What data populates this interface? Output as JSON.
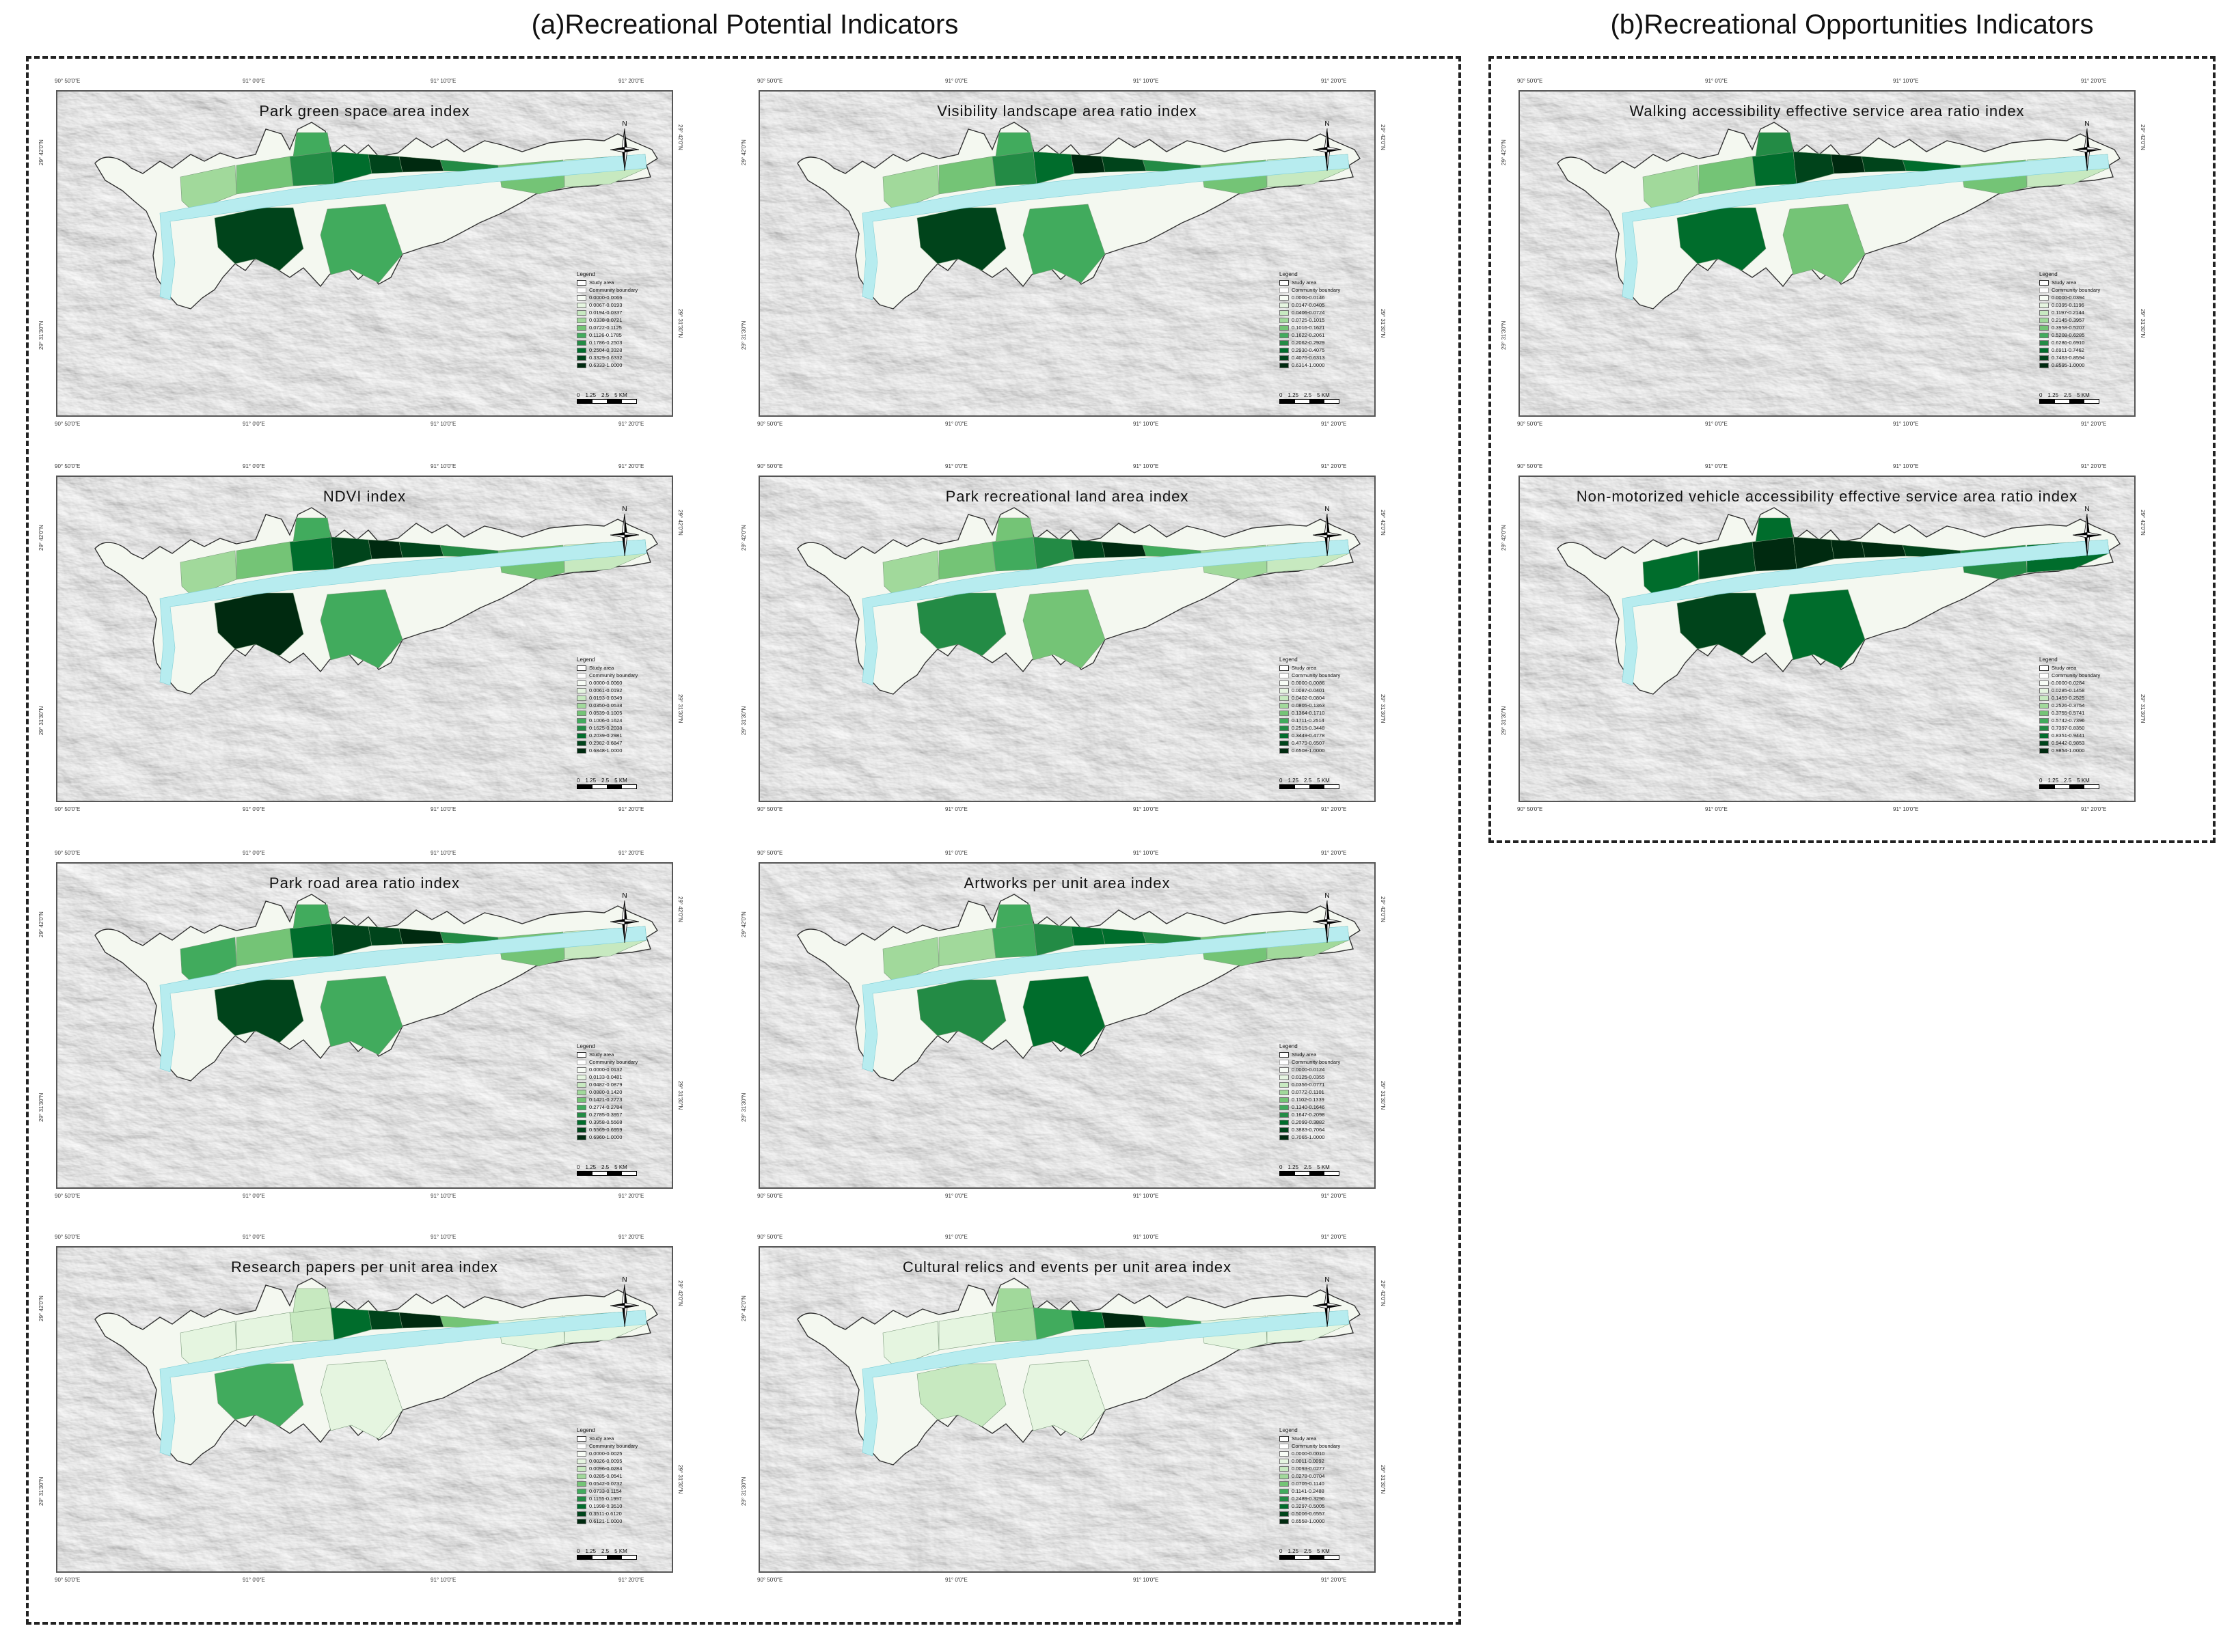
{
  "groups": [
    {
      "title": "(a)Recreational Potential Indicators"
    },
    {
      "title": "(b)Recreational Opportunities Indicators"
    }
  ],
  "coordinates": {
    "top": [
      "90° 50′0″E",
      "91° 0′0″E",
      "91° 10′0″E",
      "91° 20′0″E"
    ],
    "bottom": [
      "90° 50′0″E",
      "91° 0′0″E",
      "91° 10′0″E",
      "91° 20′0″E"
    ],
    "left": [
      "29° 42′0″N",
      "29° 31′30″N"
    ],
    "right": [
      "29° 42′0″N",
      "29° 31′30″N"
    ]
  },
  "north_label": "N",
  "legend_common": {
    "title": "Legend",
    "study_area": "Study area",
    "community_boundary": "Community boundary"
  },
  "scale": {
    "labels": [
      "0",
      "1.25",
      "2.5",
      "5 KM"
    ]
  },
  "colors": {
    "ramp": [
      "#f7fcf5",
      "#e5f5e0",
      "#c7e9c0",
      "#a1d99b",
      "#74c476",
      "#41ab5d",
      "#238b45",
      "#006d2c",
      "#00441b",
      "#002a10"
    ],
    "water": "#b7ecef",
    "hillshade": "#d4d4d4"
  },
  "maps": [
    {
      "title": "Park green space area index",
      "classes": [
        "0.0000-0.0066",
        "0.0067-0.0193",
        "0.0194-0.0337",
        "0.0338-0.0721",
        "0.0722-0.1125",
        "0.1126-0.1785",
        "0.1786-0.2503",
        "0.2504-0.3328",
        "0.3329-0.6332",
        "0.6333-1.0000"
      ],
      "levels": [
        3,
        4,
        6,
        7,
        8,
        9,
        6,
        5,
        4,
        2,
        8,
        5
      ]
    },
    {
      "title": "Visibility landscape area ratio index",
      "classes": [
        "0.0000-0.0146",
        "0.0147-0.0405",
        "0.0406-0.0724",
        "0.0725-0.1015",
        "0.1016-0.1621",
        "0.1622-0.2061",
        "0.2062-0.2929",
        "0.2930-0.4075",
        "0.4076-0.6313",
        "0.6314-1.0000"
      ],
      "levels": [
        3,
        4,
        6,
        7,
        9,
        8,
        6,
        5,
        4,
        2,
        8,
        5
      ]
    },
    {
      "title": "Walking accessibility effective service area ratio index",
      "classes": [
        "0.0000-0.0394",
        "0.0395-0.1196",
        "0.1197-0.2144",
        "0.2145-0.3957",
        "0.3958-0.5207",
        "0.5208-0.6285",
        "0.6286-0.6910",
        "0.6911-0.7462",
        "0.7463-0.8594",
        "0.8595-1.0000"
      ],
      "levels": [
        3,
        4,
        7,
        8,
        9,
        8,
        7,
        6,
        4,
        2,
        7,
        4
      ]
    },
    {
      "title": "NDVI index",
      "classes": [
        "0.0000-0.0060",
        "0.0061-0.0192",
        "0.0193-0.0349",
        "0.0350-0.0538",
        "0.0539-0.1005",
        "0.1006-0.1624",
        "0.1625-0.2038",
        "0.2039-0.2981",
        "0.2982-0.6847",
        "0.6848-1.0000"
      ],
      "levels": [
        3,
        4,
        7,
        8,
        9,
        8,
        6,
        5,
        4,
        2,
        9,
        5
      ]
    },
    {
      "title": "Park recreational land area index",
      "classes": [
        "0.0000-0.0086",
        "0.0087-0.0401",
        "0.0402-0.0804",
        "0.0805-0.1363",
        "0.1364-0.1710",
        "0.1711-0.2514",
        "0.2515-0.3448",
        "0.3449-0.4778",
        "0.4779-0.6507",
        "0.6508-1.0000"
      ],
      "levels": [
        3,
        4,
        5,
        6,
        8,
        9,
        5,
        4,
        3,
        2,
        6,
        4
      ]
    },
    {
      "title": "Non-motorized vehicle accessibility effective service area ratio index",
      "classes": [
        "0.0000-0.0284",
        "0.0285-0.1458",
        "0.1459-0.2525",
        "0.2526-0.3754",
        "0.3755-0.5741",
        "0.5742-0.7396",
        "0.7397-0.8350",
        "0.8351-0.9441",
        "0.9442-0.9853",
        "0.9854-1.0000"
      ],
      "levels": [
        7,
        8,
        9,
        9,
        9,
        9,
        8,
        7,
        6,
        7,
        8,
        7
      ]
    },
    {
      "title": "Park road area ratio index",
      "classes": [
        "0.0000-0.0132",
        "0.0133-0.0481",
        "0.0482-0.0879",
        "0.0880-0.1420",
        "0.1421-0.2773",
        "0.2774-0.2784",
        "0.2785-0.3957",
        "0.3958-0.5568",
        "0.5569-0.6959",
        "0.6960-1.0000"
      ],
      "levels": [
        5,
        4,
        7,
        8,
        8,
        9,
        6,
        5,
        4,
        2,
        8,
        5
      ]
    },
    {
      "title": "Artworks per unit area index",
      "classes": [
        "0.0000-0.0124",
        "0.0125-0.0355",
        "0.0356-0.0771",
        "0.0772-0.1101",
        "0.1102-0.1339",
        "0.1340-0.1646",
        "0.1647-0.2098",
        "0.2099-0.3882",
        "0.3883-0.7064",
        "0.7065-1.0000"
      ],
      "levels": [
        3,
        3,
        5,
        6,
        7,
        7,
        6,
        5,
        4,
        3,
        6,
        7
      ]
    },
    {
      "title": "Research papers per unit area index",
      "classes": [
        "0.0000-0.0025",
        "0.0026-0.0095",
        "0.0096-0.0284",
        "0.0285-0.0541",
        "0.0542-0.0732",
        "0.0733-0.1154",
        "0.1155-0.1997",
        "0.1998-0.3510",
        "0.3511-0.6120",
        "0.6121-1.0000"
      ],
      "levels": [
        1,
        1,
        2,
        7,
        8,
        9,
        4,
        2,
        1,
        1,
        5,
        1
      ]
    },
    {
      "title": "Cultural relics and events per unit area index",
      "classes": [
        "0.0000-0.0010",
        "0.0011-0.0092",
        "0.0093-0.0277",
        "0.0278-0.0704",
        "0.0705-0.1140",
        "0.1141-0.2488",
        "0.2489-0.3296",
        "0.3297-0.5005",
        "0.5006-0.6557",
        "0.6558-1.0000"
      ],
      "levels": [
        1,
        1,
        3,
        5,
        7,
        9,
        5,
        3,
        1,
        1,
        2,
        1
      ]
    }
  ]
}
